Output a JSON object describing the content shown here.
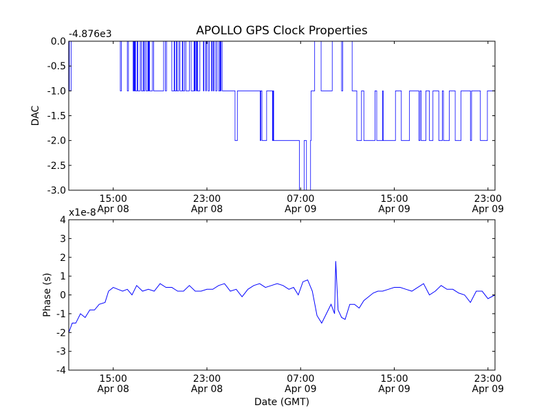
{
  "title": "APOLLO GPS Clock Properties",
  "xlabel": "Date (GMT)",
  "x_tick_labels": [
    {
      "time": "15:00",
      "date": "Apr 08"
    },
    {
      "time": "23:00",
      "date": "Apr 08"
    },
    {
      "time": "07:00",
      "date": "Apr 09"
    },
    {
      "time": "15:00",
      "date": "Apr 09"
    },
    {
      "time": "23:00",
      "date": "Apr 09"
    }
  ],
  "colors": {
    "line": "#0000ff",
    "axes": "#000000",
    "background": "#ffffff"
  },
  "chart_data": [
    {
      "type": "line",
      "ylabel": "DAC",
      "offset_label": "-4.876e3",
      "y_ticks": [
        "0.0",
        "-0.5",
        "-1.0",
        "-1.5",
        "-2.0",
        "-2.5",
        "-3.0"
      ],
      "ylim": [
        -3.0,
        0.0
      ],
      "grid": false,
      "x_unit": "hours since Apr 08 00:00 GMT",
      "xlim": [
        11.2,
        47.6
      ],
      "x_ticks": [
        15,
        23,
        31,
        39,
        47
      ],
      "series": [
        {
          "x": [
            11.2,
            11.25,
            11.35,
            11.4,
            14.3,
            14.5,
            15.6,
            15.7,
            16.2,
            16.3,
            16.7,
            16.75,
            16.8,
            16.85,
            16.9,
            17.05,
            17.1,
            17.3,
            17.4,
            17.55,
            17.6,
            17.7,
            17.8,
            17.95,
            18.0,
            18.05,
            18.1,
            18.35,
            18.45,
            19.3,
            19.45,
            19.55,
            20.0,
            20.2,
            20.25,
            20.4,
            20.45,
            20.6,
            20.7,
            20.9,
            20.95,
            21.1,
            21.2,
            21.5,
            21.65,
            21.9,
            21.95,
            22.0,
            22.1,
            22.15,
            22.2,
            22.4,
            22.7,
            22.75,
            22.9,
            22.95,
            23.1,
            23.2,
            23.4,
            23.45,
            23.55,
            23.6,
            23.75,
            23.85,
            24.0,
            24.1,
            24.15,
            24.2,
            24.3,
            24.5,
            25.2,
            25.4,
            25.5,
            25.6,
            27.4,
            27.55,
            27.6,
            27.7,
            28.0,
            28.1,
            28.5,
            28.6,
            28.65,
            28.7,
            29.3,
            29.4,
            29.5,
            29.7,
            30.8,
            30.9,
            31.2,
            31.3,
            31.5,
            31.65,
            31.85,
            31.9,
            32.1,
            32.2,
            32.6,
            32.75,
            33.6,
            33.7,
            34.5,
            34.6,
            35.4,
            35.5,
            35.75,
            35.8,
            36.2,
            36.4,
            37.3,
            37.35,
            37.45,
            37.5,
            38.0,
            38.05,
            39.1,
            39.2,
            39.5,
            39.6,
            40.1,
            40.3,
            41.0,
            41.1,
            41.2,
            41.3,
            41.7,
            41.8,
            41.9,
            42.0,
            42.2,
            42.3,
            42.7,
            42.8,
            43.1,
            43.2,
            43.6,
            43.7,
            44.1,
            44.2,
            44.7,
            44.8,
            45.5,
            45.6,
            46.2,
            46.35,
            46.95,
            47.05,
            47.1,
            47.2,
            47.6
          ],
          "y": [
            0.0,
            -1.0,
            -1.0,
            0.0,
            0.0,
            0.0,
            -1.0,
            0.0,
            -1.0,
            0.0,
            -1.0,
            0.0,
            -1.0,
            0.0,
            -1.0,
            0.0,
            -1.0,
            0.0,
            -1.0,
            0.0,
            -1.0,
            0.0,
            -1.0,
            0.0,
            -1.0,
            0.0,
            -1.0,
            0.0,
            -1.0,
            0.0,
            -1.0,
            0.0,
            -1.0,
            0.0,
            -1.0,
            0.0,
            -1.0,
            0.0,
            -1.0,
            0.0,
            -1.0,
            0.0,
            -1.0,
            0.0,
            -1.0,
            0.0,
            -1.0,
            0.0,
            -1.0,
            0.0,
            -1.0,
            0.0,
            -1.0,
            0.0,
            -1.0,
            0.0,
            -1.0,
            0.0,
            -1.0,
            0.0,
            -1.0,
            0.0,
            -1.0,
            0.0,
            -1.0,
            0.0,
            -1.0,
            0.0,
            -1.0,
            -1.0,
            -1.0,
            -2.0,
            -2.0,
            -1.0,
            -1.0,
            -2.0,
            -1.0,
            -2.0,
            -2.0,
            -1.0,
            -1.0,
            -2.0,
            -1.0,
            -2.0,
            -2.0,
            -2.0,
            -2.0,
            -2.0,
            -2.0,
            -3.0,
            -3.0,
            -2.0,
            -3.0,
            -3.0,
            -2.0,
            -1.0,
            -1.0,
            0.0,
            0.0,
            -1.0,
            -1.0,
            0.0,
            -1.0,
            0.0,
            -1.0,
            -1.0,
            -1.0,
            -2.0,
            -1.0,
            -2.0,
            -2.0,
            -1.0,
            -1.0,
            -2.0,
            -1.0,
            -2.0,
            -1.0,
            -1.0,
            -1.0,
            -2.0,
            -2.0,
            -1.0,
            -1.0,
            -2.0,
            -1.0,
            -2.0,
            -1.0,
            -1.0,
            -1.0,
            -2.0,
            -2.0,
            -1.0,
            -1.0,
            -2.0,
            -1.0,
            -2.0,
            -2.0,
            -1.0,
            -1.0,
            -2.0,
            -1.0,
            -1.0,
            -2.0,
            -1.0,
            -1.0,
            -2.0,
            -1.0,
            -1.0,
            -1.0,
            -1.0,
            -1.0
          ]
        }
      ]
    },
    {
      "type": "line",
      "ylabel": "Phase (s)",
      "offset_label": "x1e-8",
      "y_ticks": [
        "4",
        "3",
        "2",
        "1",
        "0",
        "-1",
        "-2",
        "-3",
        "-4"
      ],
      "ylim": [
        -4,
        4
      ],
      "y_unit": "1e-8 s",
      "grid": false,
      "x_unit": "hours since Apr 08 00:00 GMT",
      "xlim": [
        11.2,
        47.6
      ],
      "x_ticks": [
        15,
        23,
        31,
        39,
        47
      ],
      "series": [
        {
          "x": [
            11.2,
            11.5,
            11.8,
            12.2,
            12.6,
            13.0,
            13.4,
            13.8,
            14.3,
            14.6,
            15.0,
            15.4,
            15.8,
            16.2,
            16.6,
            17.0,
            17.5,
            18.0,
            18.5,
            19.0,
            19.5,
            20.0,
            20.5,
            21.0,
            21.5,
            22.0,
            22.5,
            23.0,
            23.5,
            24.0,
            24.5,
            25.0,
            25.5,
            26.0,
            26.5,
            27.0,
            27.5,
            28.0,
            28.5,
            29.0,
            29.5,
            30.0,
            30.4,
            30.8,
            31.2,
            31.6,
            32.0,
            32.4,
            32.8,
            33.2,
            33.6,
            33.9,
            34.0,
            34.2,
            34.5,
            34.8,
            35.2,
            35.6,
            36.0,
            36.4,
            36.8,
            37.2,
            37.6,
            38.0,
            38.5,
            39.0,
            39.5,
            40.0,
            40.5,
            41.0,
            41.5,
            42.0,
            42.5,
            43.0,
            43.5,
            44.0,
            44.5,
            45.0,
            45.5,
            46.0,
            46.5,
            47.0,
            47.6
          ],
          "y": [
            -2.0,
            -1.5,
            -1.5,
            -1.0,
            -1.2,
            -0.8,
            -0.8,
            -0.5,
            -0.4,
            0.2,
            0.4,
            0.3,
            0.2,
            0.3,
            0.0,
            0.5,
            0.2,
            0.3,
            0.2,
            0.6,
            0.4,
            0.4,
            0.2,
            0.2,
            0.5,
            0.2,
            0.2,
            0.3,
            0.3,
            0.5,
            0.6,
            0.2,
            0.3,
            -0.1,
            0.3,
            0.5,
            0.6,
            0.4,
            0.5,
            0.6,
            0.5,
            0.3,
            0.4,
            0.0,
            0.7,
            0.8,
            0.2,
            -1.1,
            -1.5,
            -1.0,
            -0.5,
            -1.0,
            1.8,
            -0.8,
            -1.2,
            -1.3,
            -0.5,
            -0.5,
            -0.7,
            -0.3,
            -0.1,
            0.1,
            0.2,
            0.2,
            0.3,
            0.4,
            0.4,
            0.3,
            0.2,
            0.4,
            0.6,
            0.0,
            0.2,
            0.5,
            0.3,
            0.3,
            0.1,
            0.0,
            -0.4,
            0.2,
            0.2,
            -0.2,
            0.0
          ]
        }
      ]
    }
  ]
}
